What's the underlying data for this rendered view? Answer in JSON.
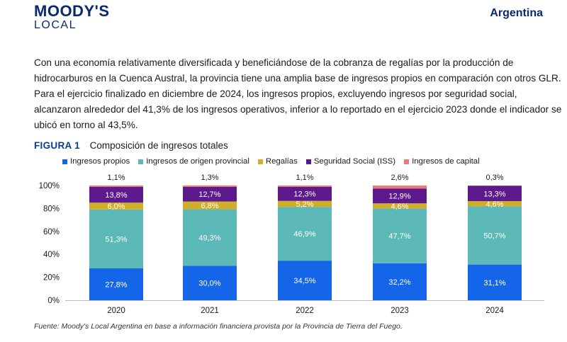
{
  "header": {
    "logo_main": "MOODY'S",
    "logo_sub": "LOCAL",
    "country": "Argentina"
  },
  "body_text": "Con una economía relativamente diversificada y beneficiándose de la cobranza de regalías por la producción de hidrocarburos en la Cuenca Austral, la provincia tiene una amplia base de ingresos propios en comparación con otros GLR. Para el ejercicio finalizado en diciembre de 2024, los ingresos propios, excluyendo ingresos por seguridad social, alcanzaron alrededor del 41,3% de los ingresos operativos, inferior a lo reportado en el ejercicio 2023 donde el indicador se ubicó en torno al 43,5%.",
  "figure": {
    "label": "FIGURA 1",
    "title": "Composición de ingresos totales"
  },
  "source": "Fuente: Moody's Local Argentina en base a información financiera provista por la Provincia de Tierra del Fuego.",
  "colors": {
    "ingresos_propios": "#1565e8",
    "origen_provincial": "#5db8b8",
    "regalias": "#cfae2a",
    "seguridad_social": "#5c1a8c",
    "capital": "#e87b7b",
    "brand": "#0a2a6e"
  },
  "chart_data": {
    "type": "bar",
    "stacked": true,
    "categories": [
      "2020",
      "2021",
      "2022",
      "2023",
      "2024"
    ],
    "series": [
      {
        "name": "Ingresos propios",
        "color": "#1565e8",
        "values": [
          27.8,
          30.0,
          34.5,
          32.2,
          31.1
        ],
        "labels": [
          "27,8%",
          "30,0%",
          "34,5%",
          "32,2%",
          "31,1%"
        ]
      },
      {
        "name": "Ingresos de origen provincial",
        "color": "#5db8b8",
        "values": [
          51.3,
          49.3,
          46.9,
          47.7,
          50.7
        ],
        "labels": [
          "51,3%",
          "49,3%",
          "46,9%",
          "47,7%",
          "50,7%"
        ]
      },
      {
        "name": "Regalías",
        "color": "#cfae2a",
        "values": [
          6.0,
          6.8,
          5.2,
          4.6,
          4.6
        ],
        "labels": [
          "6,0%",
          "6,8%",
          "5,2%",
          "4,6%",
          "4,6%"
        ]
      },
      {
        "name": "Seguridad Social (ISS)",
        "color": "#5c1a8c",
        "values": [
          13.8,
          12.7,
          12.3,
          12.9,
          13.3
        ],
        "labels": [
          "13,8%",
          "12,7%",
          "12,3%",
          "12,9%",
          "13,3%"
        ]
      },
      {
        "name": "Ingresos de capital",
        "color": "#e87b7b",
        "values": [
          1.1,
          1.3,
          1.1,
          2.6,
          0.3
        ],
        "labels": [
          "1,1%",
          "1,3%",
          "1,1%",
          "2,6%",
          "0,3%"
        ]
      }
    ],
    "y_ticks": [
      "0%",
      "20%",
      "40%",
      "60%",
      "80%",
      "100%"
    ],
    "ylim": [
      0,
      100
    ],
    "legend_position": "top",
    "grid": false
  }
}
